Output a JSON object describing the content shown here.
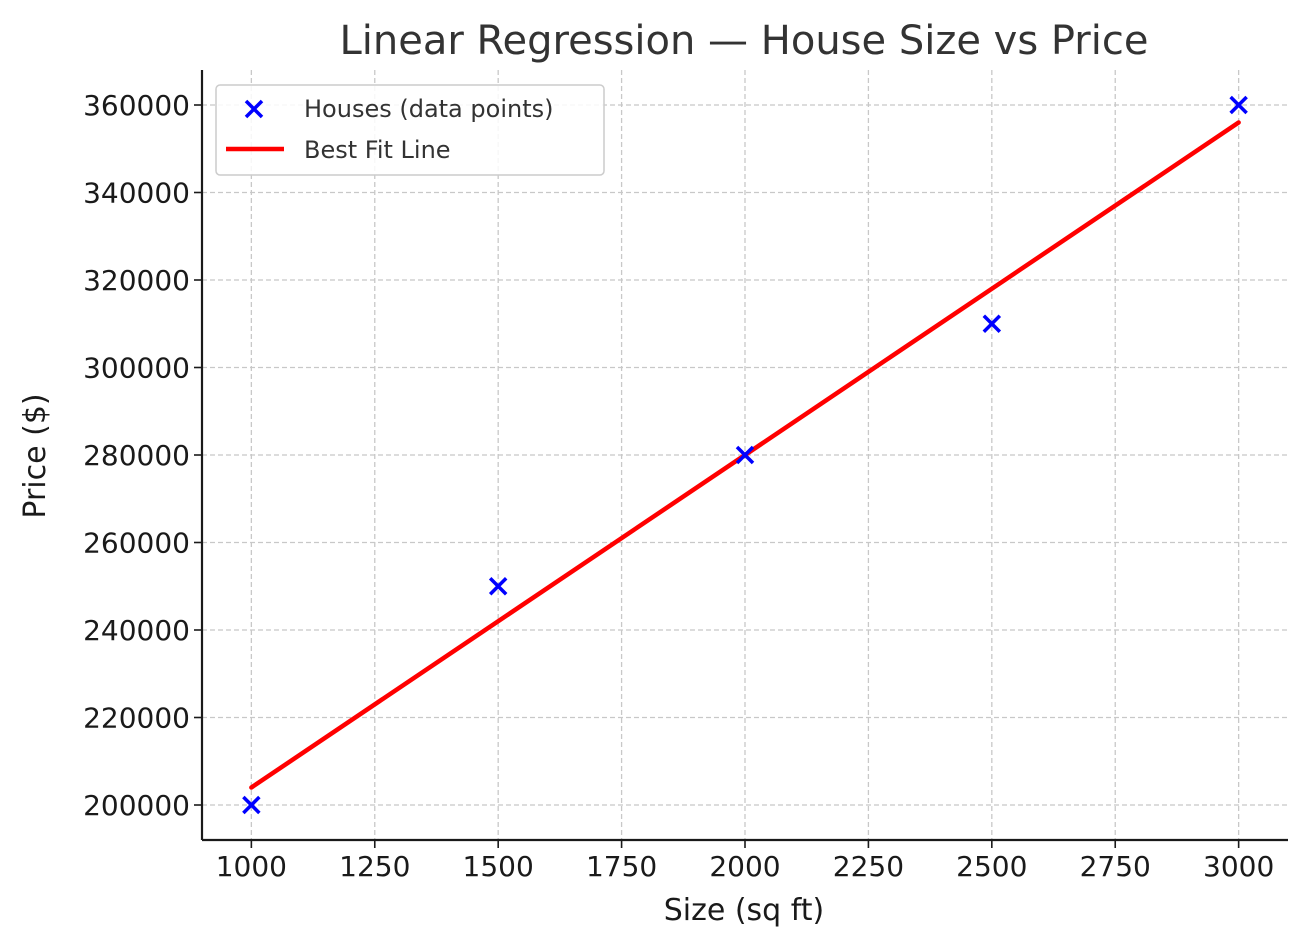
{
  "chart_data": {
    "type": "scatter",
    "title": "Linear Regression — House Size vs Price",
    "xlabel": "Size (sq ft)",
    "ylabel": "Price ($)",
    "xlim": [
      900,
      3100
    ],
    "ylim": [
      192000,
      368000
    ],
    "x_ticks": [
      1000,
      1250,
      1500,
      1750,
      2000,
      2250,
      2500,
      2750,
      3000
    ],
    "y_ticks": [
      200000,
      220000,
      240000,
      260000,
      280000,
      300000,
      320000,
      340000,
      360000
    ],
    "grid": true,
    "legend_position": "top-left",
    "series": [
      {
        "name": "Houses (data points)",
        "kind": "scatter",
        "marker": "x",
        "color": "#0000ff",
        "x": [
          1000,
          1500,
          2000,
          2500,
          3000
        ],
        "y": [
          200000,
          250000,
          280000,
          310000,
          360000
        ]
      },
      {
        "name": "Best Fit Line",
        "kind": "line",
        "color": "#ff0000",
        "x": [
          1000,
          3000
        ],
        "y": [
          204000,
          356000
        ]
      }
    ]
  }
}
